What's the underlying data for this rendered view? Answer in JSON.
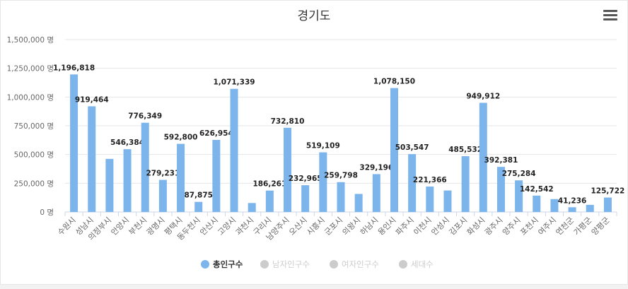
{
  "chart_data": {
    "type": "bar",
    "title": "경기도",
    "y_unit": "명",
    "ylim": [
      0,
      1500000
    ],
    "yticks": [
      0,
      250000,
      500000,
      750000,
      1000000,
      1250000,
      1500000
    ],
    "ytick_labels": [
      "0 명",
      "250,000 명",
      "500,000 명",
      "750,000 명",
      "1,000,000 명",
      "1,250,000 명",
      "1,500,000 명"
    ],
    "grid": true,
    "legend_position": "bottom",
    "categories": [
      "수원시",
      "성남시",
      "의정부시",
      "안양시",
      "부천시",
      "광명시",
      "평택시",
      "동두천시",
      "안산시",
      "고양시",
      "과천시",
      "구리시",
      "남양주시",
      "오산시",
      "시흥시",
      "군포시",
      "의왕시",
      "하남시",
      "용인시",
      "파주시",
      "이천시",
      "안성시",
      "김포시",
      "화성시",
      "광주시",
      "양주시",
      "포천시",
      "여주시",
      "연천군",
      "가평군",
      "양평군"
    ],
    "series": [
      {
        "name": "총인구수",
        "color": "#7cb5ec",
        "visible": true,
        "values": [
          1196818,
          919464,
          462000,
          546384,
          776349,
          279231,
          592800,
          87875,
          626954,
          1071339,
          78000,
          186261,
          732810,
          232965,
          519109,
          259798,
          157000,
          329196,
          1078150,
          503547,
          221366,
          187000,
          485532,
          949912,
          392381,
          275284,
          142542,
          112000,
          41236,
          62000,
          125722
        ],
        "labels": [
          "1,196,818",
          "919,464",
          "",
          "546,384",
          "776,349",
          "279,231",
          "592,800",
          "87,875",
          "626,954",
          "1,071,339",
          "",
          "186,261",
          "732,810",
          "232,965",
          "519,109",
          "259,798",
          "",
          "329,196",
          "1,078,150",
          "503,547",
          "221,366",
          "",
          "485,532",
          "949,912",
          "392,381",
          "275,284",
          "142,542",
          "",
          "41,236",
          "",
          "125,722"
        ]
      },
      {
        "name": "남자인구수",
        "color": "#cccccc",
        "visible": false
      },
      {
        "name": "여자인구수",
        "color": "#cccccc",
        "visible": false
      },
      {
        "name": "세대수",
        "color": "#cccccc",
        "visible": false
      }
    ]
  },
  "ui": {
    "menu_icon": "hamburger-menu-icon"
  }
}
